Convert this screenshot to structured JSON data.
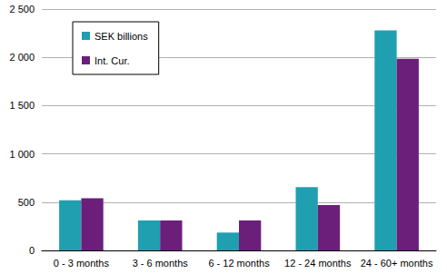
{
  "chart_data": {
    "type": "bar",
    "categories": [
      "0 - 3 months",
      "3 - 6 months",
      "6 - 12 months",
      "12 - 24 months",
      "24 - 60+ months"
    ],
    "series": [
      {
        "name": "SEK billions",
        "color": "#1f9fb0",
        "values": [
          520,
          310,
          185,
          655,
          2280
        ]
      },
      {
        "name": "Int. Cur.",
        "color": "#6b1f7b",
        "values": [
          540,
          310,
          310,
          470,
          1985
        ]
      }
    ],
    "ylim": [
      0,
      2500
    ],
    "yticks": [
      0,
      500,
      {
        "value": 1000,
        "label": "1 000"
      },
      {
        "value": 1500,
        "label": "1 500"
      },
      {
        "value": 2000,
        "label": "2 000"
      },
      {
        "value": 2500,
        "label": "2 500"
      }
    ],
    "grid": true,
    "legend": "upper left"
  }
}
